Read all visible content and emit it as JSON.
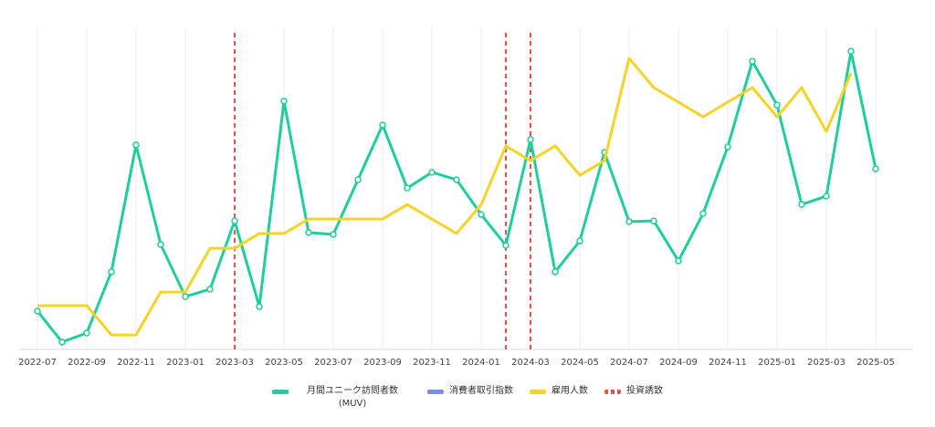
{
  "chart_data": {
    "type": "line",
    "categories": [
      "2022-07",
      null,
      "2022-09",
      null,
      "2022-11",
      null,
      "2023-01",
      null,
      "2023-03",
      null,
      "2023-05",
      null,
      "2023-07",
      null,
      "2023-09",
      null,
      "2023-11",
      null,
      "2024-01",
      null,
      "2024-03",
      null,
      "2024-05",
      null,
      "2024-07",
      null,
      "2024-09",
      null,
      "2024-11",
      null,
      "2025-01",
      null,
      "2025-03",
      null,
      "2025-05"
    ],
    "ylim": [
      0,
      100
    ],
    "series": [
      {
        "name": "月間ユニーク訪問者数 (MUV)",
        "color": "#1fcf9b",
        "markers": true,
        "values": [
          11.9,
          2.3,
          5.1,
          24.1,
          63.5,
          32.6,
          16.4,
          18.7,
          39.9,
          13.3,
          77.1,
          36.3,
          35.7,
          52.7,
          69.7,
          50.1,
          55.0,
          52.7,
          41.9,
          32.3,
          65.2,
          24.1,
          33.7,
          61.2,
          39.7,
          39.9,
          27.5,
          42.2,
          62.9,
          89.5,
          75.9,
          45.0,
          47.6,
          92.6,
          56.1
        ]
      },
      {
        "name": "消費者取引指数",
        "color": "#7b8cf0",
        "markers": false,
        "values": [
          null,
          null,
          null,
          null,
          null,
          null,
          null,
          null,
          null,
          null,
          null,
          null,
          null,
          null,
          null,
          null,
          null,
          null,
          null,
          null,
          null,
          null,
          null,
          null,
          null,
          null,
          null,
          null,
          null,
          null,
          null,
          null,
          null,
          null,
          null
        ]
      },
      {
        "name": "雇用人数",
        "color": "#f5d327",
        "markers": false,
        "values": [
          13.6,
          13.6,
          13.6,
          4.5,
          4.5,
          17.8,
          17.8,
          31.4,
          31.4,
          36.0,
          36.0,
          40.5,
          40.5,
          40.5,
          40.5,
          45.0,
          40.5,
          36.0,
          45.0,
          63.2,
          58.6,
          63.2,
          54.1,
          58.6,
          90.4,
          81.3,
          76.8,
          72.2,
          76.8,
          81.3,
          72.2,
          81.3,
          67.7,
          85.8,
          null
        ]
      }
    ],
    "events": {
      "name": "投資誘致",
      "color": "#e8524a",
      "positions": [
        8,
        19,
        20
      ]
    },
    "grid": true
  }
}
